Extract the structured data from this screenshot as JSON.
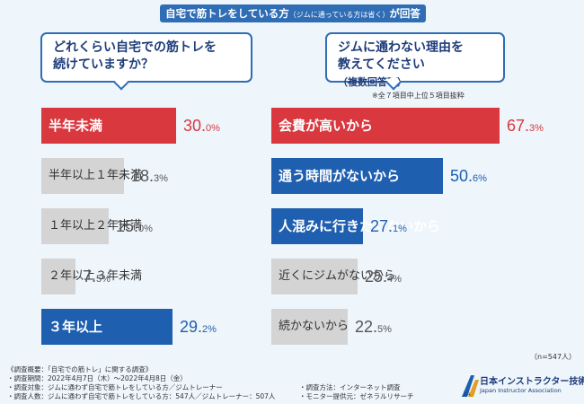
{
  "title": {
    "main": "自宅で筋トレをしている方",
    "note": "（ジムに通っている方は省く）",
    "tail": "が回答"
  },
  "left_question": {
    "line1": "どれくらい自宅での筋トレを",
    "line2": "続けていますか？"
  },
  "right_question": {
    "line1": "ジムに通わない理由を",
    "line2": "教えてください",
    "line2_sub": "（複数回答可）"
  },
  "right_note": "※全７項目中上位５項目抜粋",
  "colors": {
    "red": "#d8383e",
    "blue": "#1f5fb0",
    "gray": "#d4d4d4",
    "dark": "#1f3d7a"
  },
  "chart_data": [
    {
      "type": "bar",
      "title": "どれくらい自宅での筋トレを続けていますか？",
      "categories": [
        "半年未満",
        "半年以上１年未満",
        "１年以上２年未満",
        "２年以上３年未満",
        "３年以上"
      ],
      "values": [
        30.0,
        18.3,
        15.0,
        7.5,
        29.2
      ],
      "value_labels": [
        [
          "30.",
          "0%"
        ],
        [
          "18.",
          "3%"
        ],
        [
          "15.",
          "0%"
        ],
        [
          "7.",
          "5%"
        ],
        [
          "29.",
          "2%"
        ]
      ],
      "unit": "%",
      "highlight": [
        "red",
        "gray",
        "gray",
        "gray",
        "blue"
      ]
    },
    {
      "type": "bar",
      "title": "ジムに通わない理由を教えてください（複数回答可）",
      "categories": [
        "会費が高いから",
        "通う時間がないから",
        "人混みに行きたくないから",
        "近くにジムがないから",
        "続かないから"
      ],
      "values": [
        67.3,
        50.6,
        27.1,
        25.4,
        22.5
      ],
      "value_labels": [
        [
          "67.",
          "3%"
        ],
        [
          "50.",
          "6%"
        ],
        [
          "27.",
          "1%"
        ],
        [
          "25.",
          "4%"
        ],
        [
          "22.",
          "5%"
        ]
      ],
      "unit": "%",
      "highlight": [
        "red",
        "blue",
        "blue",
        "gray",
        "gray"
      ]
    }
  ],
  "n_note": "（n=547人）",
  "footer": {
    "heading": "《調査概要：「自宅での筋トレ」に関する調査》",
    "period": "・調査期間：2022年4月7日（木）～2022年4月8日（金）",
    "target": "・調査対象：ジムに通わず自宅で筋トレをしている方／ジムトレーナー",
    "people": "・調査人数：ジムに通わず自宅で筋トレをしている方：547人／ジムトレーナー：507人",
    "method": "・調査方法：インターネット調査",
    "monitor": "・モニター提供元：ゼネラルリサーチ"
  },
  "logo": {
    "name": "日本インストラクター技術協会",
    "en": "Japan Instructor Association",
    "mark": "JIA"
  }
}
